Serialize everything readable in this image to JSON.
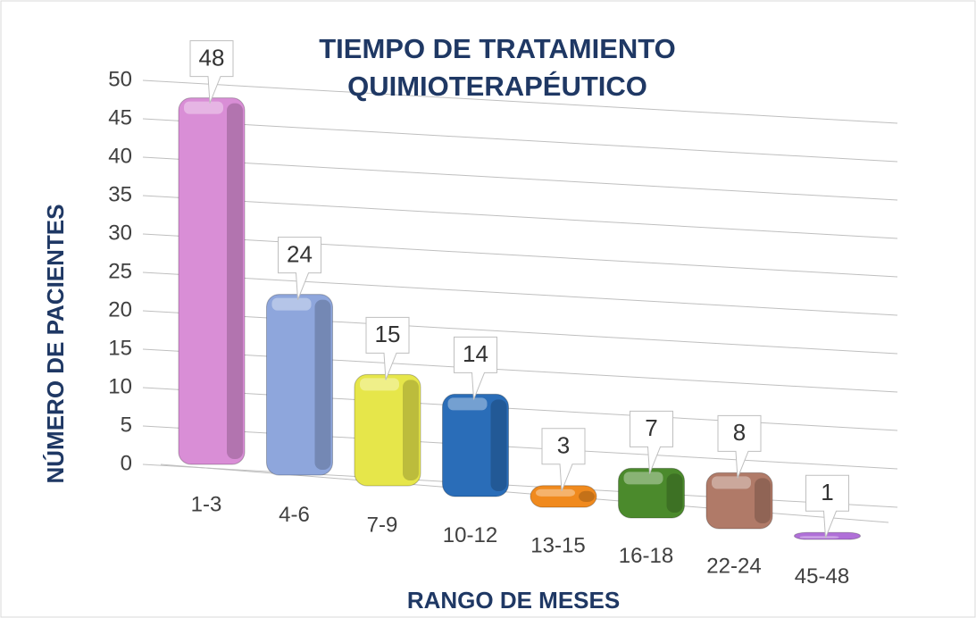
{
  "chart_data": {
    "type": "bar",
    "title": [
      "TIEMPO DE TRATAMIENTO",
      "QUIMIOTERAPÉUTICO"
    ],
    "ylabel": "NÚMERO DE PACIENTES",
    "xlabel": "RANGO DE MESES",
    "categories": [
      "1-3",
      "4-6",
      "7-9",
      "10-12",
      "13-15",
      "16-18",
      "22-24",
      "45-48"
    ],
    "values": [
      48,
      24,
      15,
      14,
      3,
      7,
      8,
      1
    ],
    "colors": [
      "#d98ed6",
      "#8ea6dc",
      "#e6e64a",
      "#2a6db8",
      "#f08a1e",
      "#4b8a2c",
      "#b07a68",
      "#b070d8"
    ],
    "ylim": [
      0,
      50
    ],
    "yticks": [
      0,
      5,
      10,
      15,
      20,
      25,
      30,
      35,
      40,
      45,
      50
    ],
    "grid": true
  }
}
